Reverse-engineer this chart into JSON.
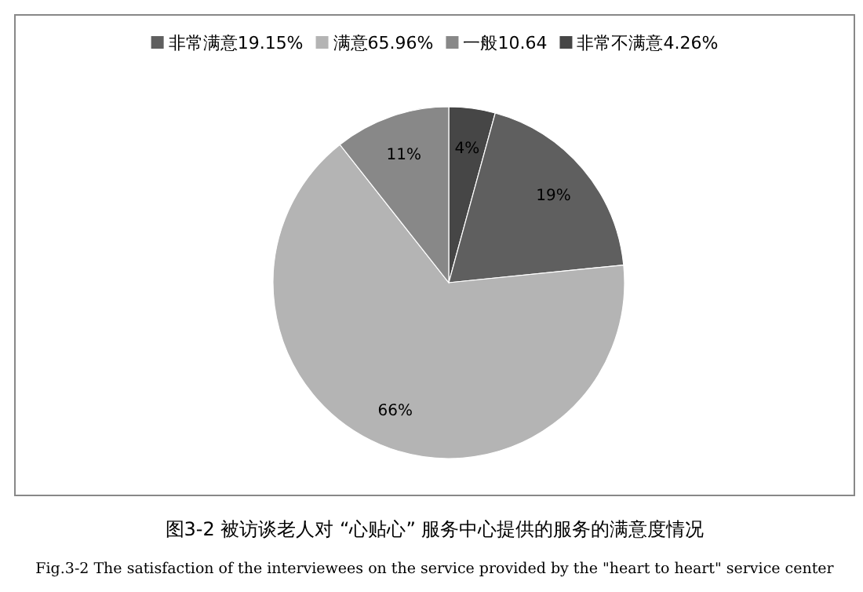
{
  "chart_data": {
    "type": "pie",
    "categories": [
      "非常满意19.15%",
      "满意65.96%",
      "一般10.64",
      "非常不满意4.26%"
    ],
    "values": [
      19.15,
      65.96,
      10.64,
      4.26
    ],
    "colors": [
      "#5f5f5f",
      "#b4b4b4",
      "#888888",
      "#464646"
    ],
    "value_labels": [
      "19%",
      "66%",
      "11%",
      "4%"
    ],
    "legend": "top",
    "annotations": [
      "图3-2 被访谈老人对 “心贴心” 服务中心提供的服务的满意度情况",
      "Fig.3-2 The satisfaction of the interviewees on the service provided by the \"heart to heart\" service center"
    ]
  }
}
